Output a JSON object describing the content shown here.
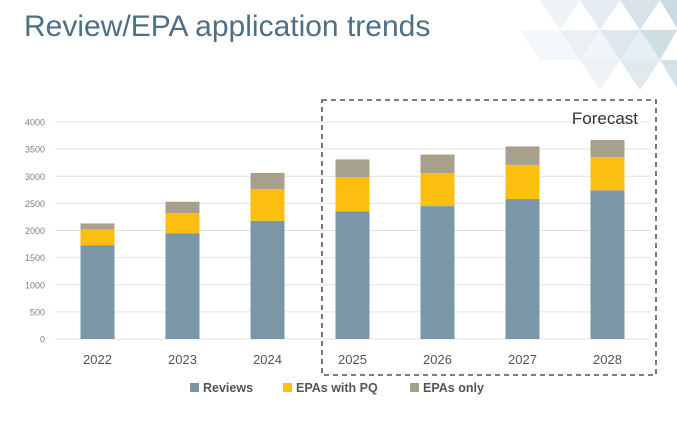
{
  "slide": {
    "title": "Review/EPA application trends",
    "forecast_label": "Forecast"
  },
  "colors": {
    "title": "#4f6f85",
    "reviews": "#7a97a8",
    "epas_with_pq": "#fcbf0f",
    "epas_only": "#a89f8c",
    "axis_text": "#7f7f7f",
    "grid": "#e3e3e3",
    "forecast_box": "#555555",
    "decor": "#9fbccb"
  },
  "chart_data": {
    "type": "bar",
    "stacked": true,
    "categories": [
      "2022",
      "2023",
      "2024",
      "2025",
      "2026",
      "2027",
      "2028"
    ],
    "series": [
      {
        "name": "Reviews",
        "values": [
          1730,
          1950,
          2180,
          2350,
          2450,
          2580,
          2740
        ]
      },
      {
        "name": "EPAs with PQ",
        "values": [
          290,
          370,
          580,
          630,
          610,
          630,
          610
        ]
      },
      {
        "name": "EPAs only",
        "values": [
          110,
          210,
          300,
          330,
          340,
          340,
          320
        ]
      }
    ],
    "ylim": [
      0,
      4000
    ],
    "yticks": [
      0,
      500,
      1000,
      1500,
      2000,
      2500,
      3000,
      3500,
      4000
    ],
    "grid": true,
    "legend": "bottom",
    "forecast_categories": [
      "2025",
      "2026",
      "2027",
      "2028"
    ]
  }
}
